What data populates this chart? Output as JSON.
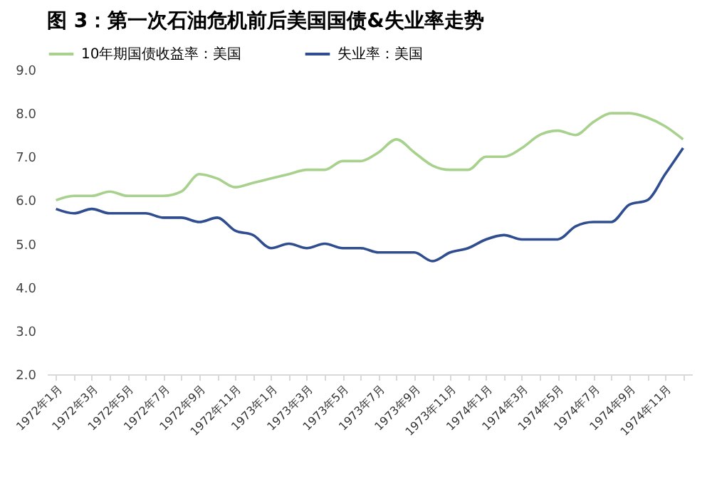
{
  "chart_data": {
    "type": "line",
    "title": "图 3：第一次石油危机前后美国国债&失业率走势",
    "categories": [
      "1972年1月",
      null,
      "1972年3月",
      null,
      "1972年5月",
      null,
      "1972年7月",
      null,
      "1972年9月",
      null,
      "1972年11月",
      null,
      "1973年1月",
      null,
      "1973年3月",
      null,
      "1973年5月",
      null,
      "1973年7月",
      null,
      "1973年9月",
      null,
      "1973年11月",
      null,
      "1974年1月",
      null,
      "1974年3月",
      null,
      "1974年5月",
      null,
      "1974年7月",
      null,
      "1974年9月",
      null,
      "1974年11月",
      null
    ],
    "series": [
      {
        "name": "10年期国债收益率：美国",
        "color": "#a9d18e",
        "values": [
          6.0,
          6.1,
          6.1,
          6.2,
          6.1,
          6.1,
          6.1,
          6.2,
          6.6,
          6.5,
          6.3,
          6.4,
          6.5,
          6.6,
          6.7,
          6.7,
          6.9,
          6.9,
          7.1,
          7.4,
          7.1,
          6.8,
          6.7,
          6.7,
          7.0,
          7.0,
          7.2,
          7.5,
          7.6,
          7.5,
          7.8,
          8.0,
          8.0,
          7.9,
          7.7,
          7.4
        ]
      },
      {
        "name": "失业率：美国",
        "color": "#2f4d8f",
        "values": [
          5.8,
          5.7,
          5.8,
          5.7,
          5.7,
          5.7,
          5.6,
          5.6,
          5.5,
          5.6,
          5.3,
          5.2,
          4.9,
          5.0,
          4.9,
          5.0,
          4.9,
          4.9,
          4.8,
          4.8,
          4.8,
          4.6,
          4.8,
          4.9,
          5.1,
          5.2,
          5.1,
          5.1,
          5.1,
          5.4,
          5.5,
          5.5,
          5.9,
          6.0,
          6.6,
          7.2
        ]
      }
    ],
    "ylim": [
      2.0,
      9.0
    ],
    "yticks": [
      {
        "value": 2,
        "label": "2.0"
      },
      {
        "value": 3,
        "label": "3.0"
      },
      {
        "value": 4,
        "label": "4.0"
      },
      {
        "value": 5,
        "label": "5.0"
      },
      {
        "value": 6,
        "label": "6.0"
      },
      {
        "value": 7,
        "label": "7.0"
      },
      {
        "value": 8,
        "label": "8.0"
      },
      {
        "value": 9,
        "label": "9.0"
      }
    ],
    "grid": false,
    "legend": "top",
    "marker": "none",
    "line_style": "solid"
  }
}
